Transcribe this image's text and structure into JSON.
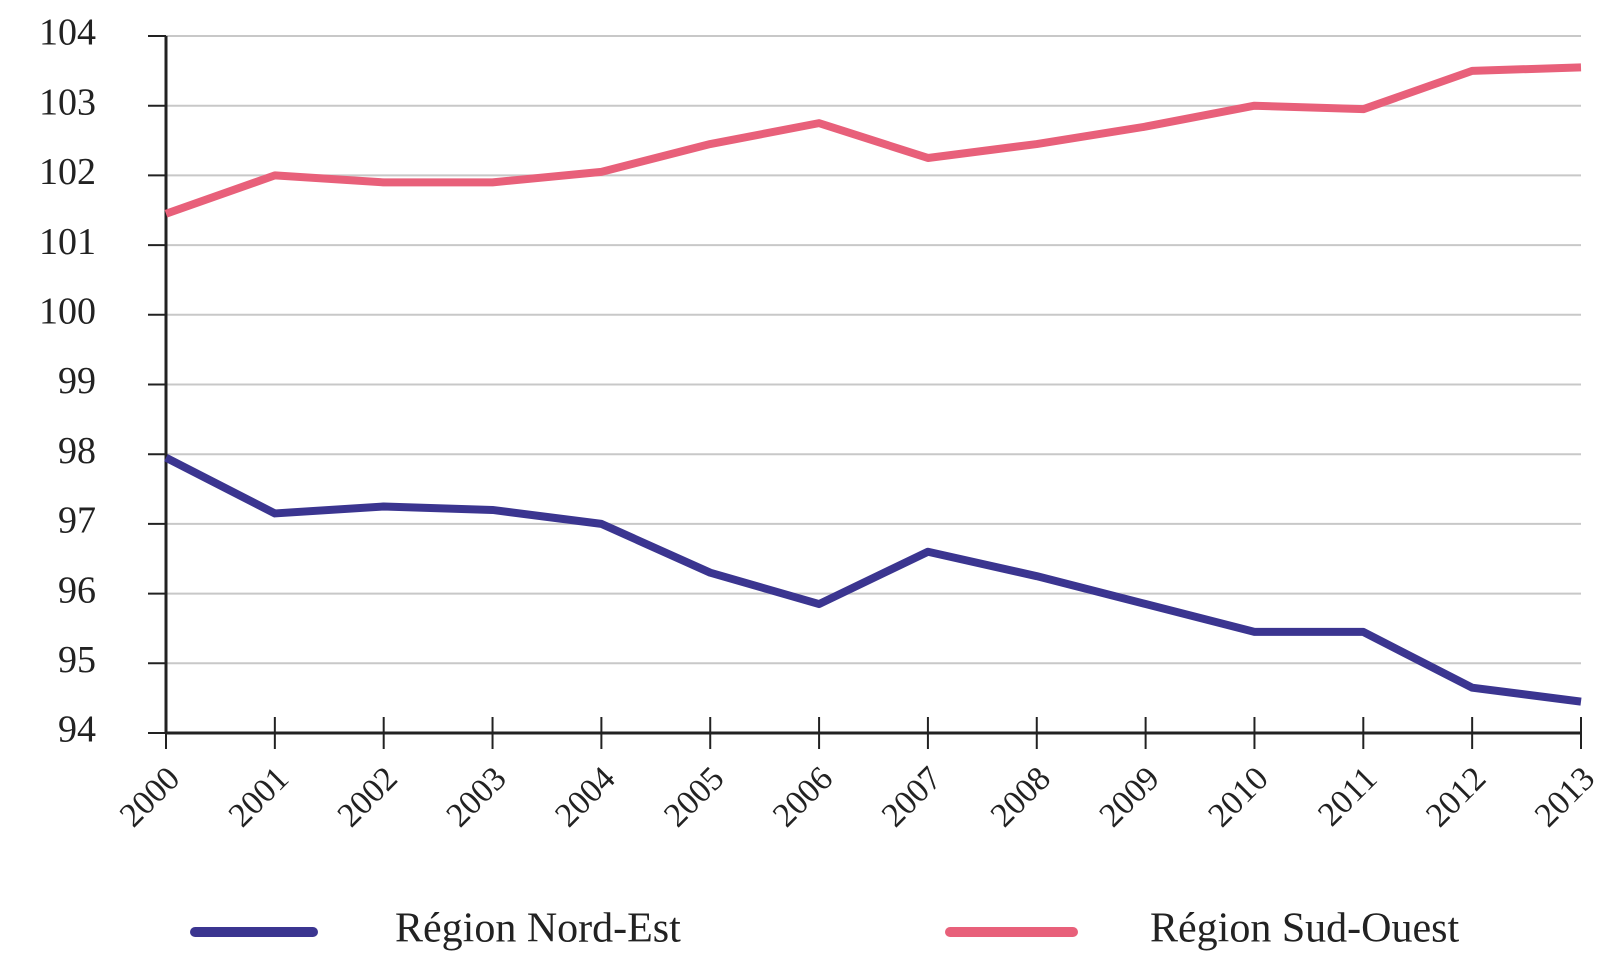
{
  "chart_data": {
    "type": "line",
    "categories": [
      "2000",
      "2001",
      "2002",
      "2003",
      "2004",
      "2005",
      "2006",
      "2007",
      "2008",
      "2009",
      "2010",
      "2011",
      "2012",
      "2013"
    ],
    "series": [
      {
        "name": "Région Nord-Est",
        "color": "#3b3590",
        "values": [
          97.95,
          97.15,
          97.25,
          97.2,
          97.0,
          96.3,
          95.85,
          96.6,
          96.25,
          95.85,
          95.45,
          95.45,
          94.65,
          94.45
        ]
      },
      {
        "name": "Région Sud-Ouest",
        "color": "#e8607a",
        "values": [
          101.45,
          102.0,
          101.9,
          101.9,
          102.05,
          102.45,
          102.75,
          102.25,
          102.45,
          102.7,
          103.0,
          102.95,
          103.5,
          103.55
        ]
      }
    ],
    "ylim": [
      94,
      104
    ],
    "yticks": [
      94,
      95,
      96,
      97,
      98,
      99,
      100,
      101,
      102,
      103,
      104
    ],
    "grid": true
  }
}
